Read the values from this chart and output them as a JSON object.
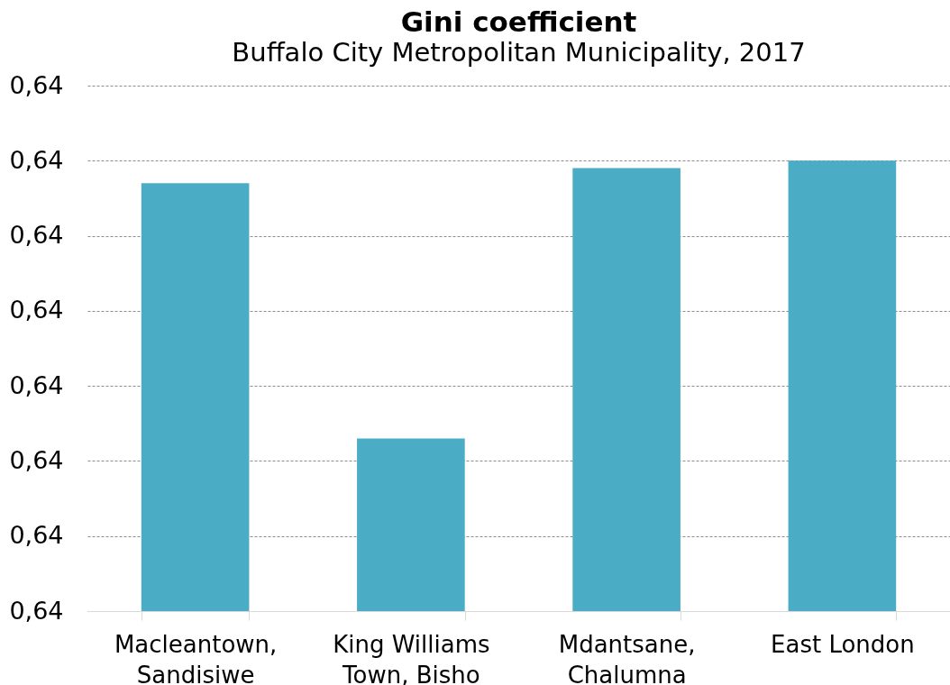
{
  "chart_data": {
    "type": "bar",
    "title": "Gini coefficient",
    "subtitle": "Buffalo City Metropolitan Municipality, 2017",
    "categories": [
      "Macleantown, Sandisiwe",
      "King Williams Town, Bisho",
      "Mdantsane, Chalumna",
      "East London"
    ],
    "values": [
      0.6427,
      0.6393,
      0.6429,
      0.643
    ],
    "color": "#4bacc6",
    "ylim": [
      0.637,
      0.644
    ],
    "yticks": [
      {
        "value": 0.637,
        "label": "0,64"
      },
      {
        "value": 0.638,
        "label": "0,64"
      },
      {
        "value": 0.639,
        "label": "0,64"
      },
      {
        "value": 0.64,
        "label": "0,64"
      },
      {
        "value": 0.641,
        "label": "0,64"
      },
      {
        "value": 0.642,
        "label": "0,64"
      },
      {
        "value": 0.643,
        "label": "0,64"
      },
      {
        "value": 0.644,
        "label": "0,64"
      }
    ],
    "grid": "y"
  }
}
